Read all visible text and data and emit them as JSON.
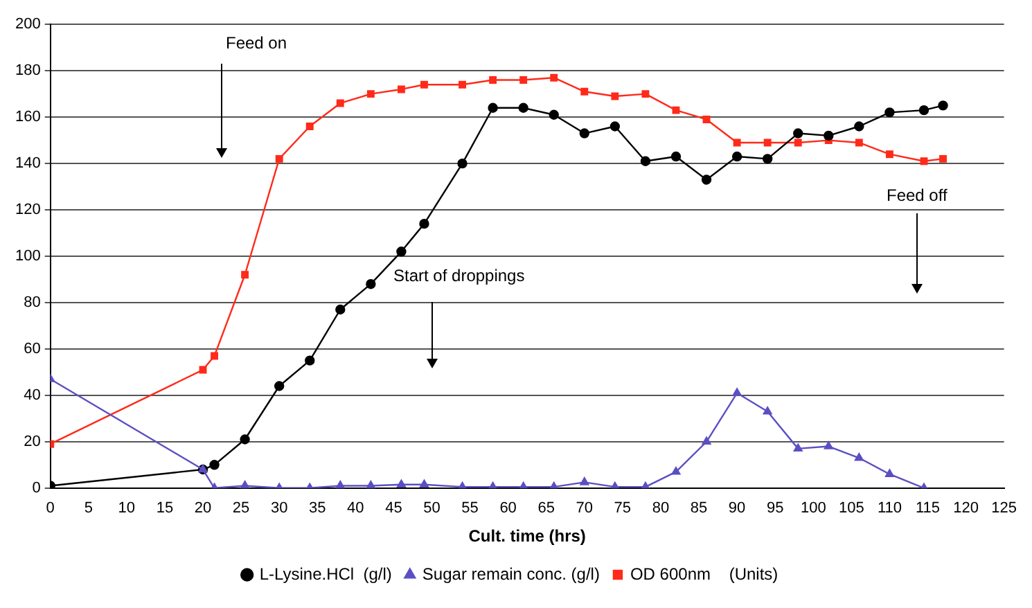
{
  "chart_data": {
    "type": "line",
    "xlabel": "Cult. time (hrs)",
    "x": [
      0,
      20,
      21.5,
      25.5,
      30,
      34,
      38,
      42,
      46,
      49,
      54,
      58,
      62,
      66,
      70,
      74,
      78,
      82,
      86,
      90,
      94,
      98,
      102,
      106,
      110,
      114.5,
      117
    ],
    "series": [
      {
        "name": "L-Lysine.HCl  (g/l)",
        "color": "#000000",
        "marker": "circle",
        "values": [
          1,
          8,
          10,
          21,
          44,
          55,
          77,
          88,
          102,
          114,
          140,
          164,
          164,
          161,
          153,
          156,
          141,
          143,
          133,
          143,
          142,
          153,
          152,
          156,
          162,
          163,
          165
        ]
      },
      {
        "name": "Sugar remain conc. (g/l)",
        "color": "#5b4fc4",
        "marker": "triangle",
        "values": [
          47,
          8,
          0,
          1,
          0,
          0,
          1,
          1,
          1.5,
          1.5,
          0.5,
          0.5,
          0.5,
          0.5,
          2.5,
          0.5,
          0.5,
          7,
          20,
          41,
          33,
          17,
          18,
          13,
          6,
          0,
          null
        ]
      },
      {
        "name": "OD 600nm    (Units)",
        "color": "#ff2a1a",
        "marker": "square",
        "values": [
          19,
          51,
          57,
          92,
          142,
          156,
          166,
          170,
          172,
          174,
          174,
          176,
          176,
          177,
          171,
          169,
          170,
          163,
          159,
          149,
          149,
          149,
          150,
          149,
          144,
          141,
          142
        ]
      }
    ],
    "xlim": [
      0,
      125
    ],
    "xticks": [
      0,
      5,
      10,
      15,
      20,
      25,
      30,
      35,
      40,
      45,
      50,
      55,
      60,
      65,
      70,
      75,
      80,
      85,
      90,
      95,
      100,
      105,
      110,
      115,
      120,
      125
    ],
    "ylim": [
      0,
      200
    ],
    "yticks": [
      0,
      20,
      40,
      60,
      80,
      100,
      120,
      140,
      160,
      180,
      200
    ],
    "grid": "y",
    "legend": "bottom",
    "line_style": "solid",
    "annotations": [
      "Feed on",
      "Start of droppings",
      "Feed off"
    ]
  }
}
